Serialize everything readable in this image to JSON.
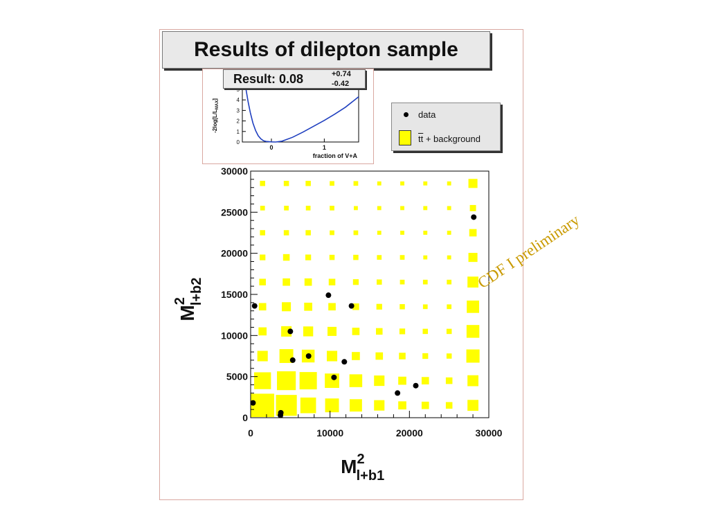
{
  "slide_title": "Results of dilepton sample",
  "inset": {
    "result_label": "Result: 0.08",
    "err_plus": "+0.74",
    "err_minus": "-0.42",
    "ylabel": "-2log[L/L",
    "ylabel_sub": "MAX",
    "ylabel_end": "]",
    "xlabel": "fraction of V+A",
    "y_ticks": [
      "0",
      "1",
      "2",
      "3",
      "4",
      "5"
    ],
    "x_ticks": [
      "0",
      "1"
    ],
    "curve_color": "#1f3fbf",
    "curve": [
      {
        "x": -0.48,
        "y": 5.0
      },
      {
        "x": -0.44,
        "y": 3.8
      },
      {
        "x": -0.4,
        "y": 2.8
      },
      {
        "x": -0.35,
        "y": 1.8
      },
      {
        "x": -0.3,
        "y": 1.1
      },
      {
        "x": -0.25,
        "y": 0.6
      },
      {
        "x": -0.2,
        "y": 0.3
      },
      {
        "x": -0.15,
        "y": 0.12
      },
      {
        "x": -0.1,
        "y": 0.05
      },
      {
        "x": 0.0,
        "y": 0.01
      },
      {
        "x": 0.08,
        "y": 0.0
      },
      {
        "x": 0.2,
        "y": 0.08
      },
      {
        "x": 0.4,
        "y": 0.45
      },
      {
        "x": 0.6,
        "y": 0.95
      },
      {
        "x": 0.8,
        "y": 1.5
      },
      {
        "x": 1.0,
        "y": 2.05
      },
      {
        "x": 1.2,
        "y": 2.65
      },
      {
        "x": 1.4,
        "y": 3.3
      },
      {
        "x": 1.55,
        "y": 3.9
      },
      {
        "x": 1.65,
        "y": 4.3
      }
    ],
    "xlim": [
      -0.55,
      1.65
    ],
    "ylim": [
      0,
      5
    ]
  },
  "legend": {
    "data_label": "data",
    "mc_label_tt": "tt",
    "mc_label_rest": " + background",
    "swatch_color": "#ffff00"
  },
  "watermark": "CDF I preliminary",
  "chart_data": {
    "type": "scatter",
    "xlabel": "M",
    "xlabel_sup": "2",
    "xlabel_sub": "l+b1",
    "ylabel": "M",
    "ylabel_sup": "2",
    "ylabel_sub": "l+b2",
    "xlim": [
      0,
      30000
    ],
    "ylim": [
      0,
      30000
    ],
    "x_ticks": [
      "0",
      "10000",
      "20000",
      "30000"
    ],
    "y_ticks": [
      "0",
      "5000",
      "10000",
      "15000",
      "20000",
      "25000",
      "30000"
    ],
    "box_color": "#ffff00",
    "box_bins": {
      "x_centers": [
        1500,
        4500,
        7250,
        10250,
        13250,
        16200,
        19100,
        22000,
        25000,
        28000
      ],
      "y_centers": [
        1500,
        4500,
        7500,
        10500,
        13500,
        16500,
        19500,
        22500,
        25500,
        28500
      ],
      "weights": [
        [
          1.0,
          0.8,
          0.45,
          0.35,
          0.28,
          0.2,
          0.12,
          0.1,
          0.08,
          0.22
        ],
        [
          0.52,
          0.65,
          0.55,
          0.38,
          0.3,
          0.2,
          0.12,
          0.1,
          0.08,
          0.22
        ],
        [
          0.2,
          0.35,
          0.3,
          0.2,
          0.12,
          0.1,
          0.08,
          0.06,
          0.05,
          0.32
        ],
        [
          0.12,
          0.2,
          0.18,
          0.15,
          0.1,
          0.08,
          0.06,
          0.05,
          0.05,
          0.3
        ],
        [
          0.1,
          0.15,
          0.12,
          0.1,
          0.08,
          0.06,
          0.05,
          0.04,
          0.04,
          0.28
        ],
        [
          0.08,
          0.1,
          0.1,
          0.08,
          0.06,
          0.05,
          0.04,
          0.04,
          0.04,
          0.22
        ],
        [
          0.06,
          0.08,
          0.06,
          0.05,
          0.05,
          0.04,
          0.04,
          0.03,
          0.03,
          0.15
        ],
        [
          0.05,
          0.05,
          0.05,
          0.04,
          0.04,
          0.03,
          0.03,
          0.03,
          0.03,
          0.1
        ],
        [
          0.04,
          0.04,
          0.04,
          0.04,
          0.03,
          0.03,
          0.03,
          0.03,
          0.03,
          0.07
        ],
        [
          0.05,
          0.05,
          0.05,
          0.04,
          0.04,
          0.03,
          0.03,
          0.03,
          0.03,
          0.15
        ]
      ]
    },
    "points": [
      {
        "x": 500,
        "y": 13600
      },
      {
        "x": 300,
        "y": 1800
      },
      {
        "x": 3750,
        "y": 300
      },
      {
        "x": 3800,
        "y": 600
      },
      {
        "x": 5000,
        "y": 10500
      },
      {
        "x": 5300,
        "y": 7000
      },
      {
        "x": 7300,
        "y": 7500
      },
      {
        "x": 9800,
        "y": 14900
      },
      {
        "x": 10500,
        "y": 4900
      },
      {
        "x": 11800,
        "y": 6800
      },
      {
        "x": 12700,
        "y": 13600
      },
      {
        "x": 18500,
        "y": 3000
      },
      {
        "x": 20800,
        "y": 3900
      },
      {
        "x": 28100,
        "y": 24400
      }
    ]
  }
}
